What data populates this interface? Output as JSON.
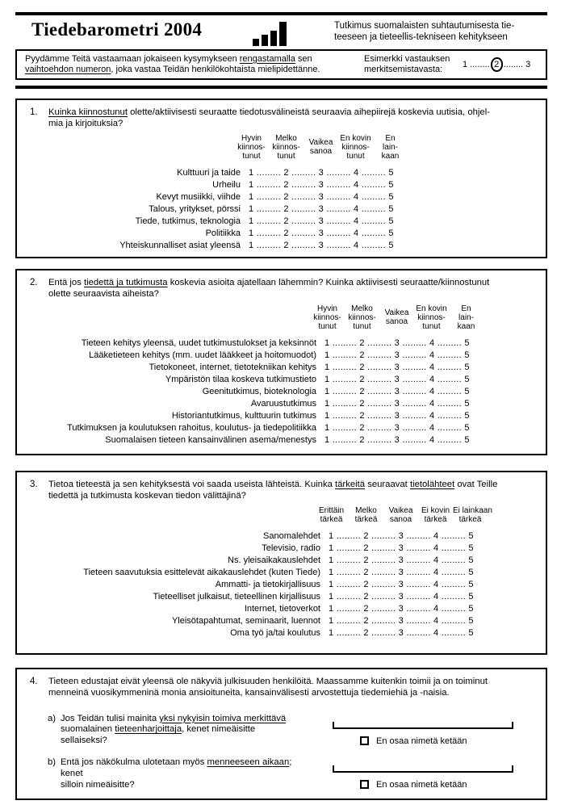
{
  "colors": {
    "ink": "#000000",
    "paper": "#ffffff"
  },
  "header": {
    "title": "Tiedebarometri 2004",
    "subtitle_line1": "Tutkimus suomalaisten suhtautumisesta tie-",
    "subtitle_line2": "teeseen ja tieteellis-tekniseen kehitykseen"
  },
  "instructions": {
    "seg_plain1": "Pyydämme Teitä vastaamaan jokaiseen kysymykseen ",
    "seg_underline1": "rengastamalla",
    "seg_plain2": " sen",
    "seg_underline2": "vaihtoehdon numeron",
    "seg_plain3": ", joka vastaa Teidän henkilökohtaista mielipidettänne.",
    "example_label_line1": "Esimerkki vastauksen",
    "example_label_line2": "merkitsemistavasta:",
    "example": {
      "n1": "1",
      "dots1": " ........",
      "n2": "2",
      "dots2": "........ ",
      "n3": "3"
    }
  },
  "rating_scale_line": "1 ......... 2 ......... 3 ......... 4 ......... 5",
  "q1": {
    "number": "1.",
    "text_u": "Kuinka kiinnostunut",
    "text_after": " olette/aktiivisesti seuraatte tiedotusvälineistä seuraavia aihepiirejä koskevia uutisia, ohjel-",
    "text_line2": "mia ja kirjoituksia?",
    "headers": [
      "Hyvin\nkiinnos-\ntunut",
      "Melko\nkiinnos-\ntunut",
      "Vaikea\nsanoa",
      "En kovin\nkiinnos-\ntunut",
      "En\nlain-\nkaan"
    ],
    "rows": [
      "Kulttuuri ja taide",
      "Urheilu",
      "Kevyt musiikki, viihde",
      "Talous, yritykset, pörssi",
      "Tiede, tutkimus, teknologia",
      "Politiikka",
      "Yhteiskunnalliset asiat yleensä"
    ]
  },
  "q2": {
    "number": "2.",
    "text_pre": "Entä jos ",
    "text_u": "tiedettä ja tutkimusta",
    "text_after": " koskevia asioita ajatellaan lähemmin? Kuinka aktiivisesti seuraatte/kiinnostunut",
    "text_line2": "olette seuraavista aiheista?",
    "headers": [
      "Hyvin\nkiinnos-\ntunut",
      "Melko\nkiinnos-\ntunut",
      "Vaikea\nsanoa",
      "En kovin\nkiinnos-\ntunut",
      "En\nlain-\nkaan"
    ],
    "rows": [
      "Tieteen kehitys yleensä, uudet tutkimustulokset ja keksinnöt",
      "Lääketieteen kehitys (mm. uudet lääkkeet ja hoitomuodot)",
      "Tietokoneet, internet, tietotekniikan kehitys",
      "Ympäristön tilaa koskeva tutkimustieto",
      "Geenitutkimus, bioteknologia",
      "Avaruustutkimus",
      "Historiantutkimus, kulttuurin tutkimus",
      "Tutkimuksen ja koulutuksen rahoitus, koulutus- ja tiedepolitiikka",
      "Suomalaisen tieteen kansainvälinen asema/menestys"
    ]
  },
  "q3": {
    "number": "3.",
    "text_pre": "Tietoa tieteestä ja sen kehityksestä voi saada useista lähteistä. Kuinka ",
    "text_u1": "tärkeitä",
    "text_mid": " seuraavat ",
    "text_u2": "tietolähteet",
    "text_after": " ovat Teille",
    "text_line2": "tiedettä ja tutkimusta koskevan tiedon välittäjinä?",
    "headers": [
      "Erittäin\ntärkeä",
      "Melko\ntärkeä",
      "Vaikea\nsanoa",
      "Ei kovin\ntärkeä",
      "Ei lainkaan\ntärkeä"
    ],
    "rows": [
      "Sanomalehdet",
      "Televisio, radio",
      "Ns. yleisaikakauslehdet",
      "Tieteen saavutuksia esittelevät aikakauslehdet (kuten Tiede)",
      "Ammatti- ja tietokirjallisuus",
      "Tieteelliset julkaisut, tieteellinen kirjallisuus",
      "Internet, tietoverkot",
      "Yleisötapahtumat, seminaarit, luennot",
      "Oma työ ja/tai koulutus"
    ]
  },
  "q4": {
    "number": "4.",
    "text_line1": "Tieteen edustajat eivät yleensä ole näkyviä julkisuuden henkilöitä. Maassamme kuitenkin toimii ja on toiminut",
    "text_line2": "menneinä vuosikymmeninä monia ansioituneita, kansainvälisesti arvostettuja tiedemiehiä ja -naisia.",
    "a": {
      "label": "a)",
      "text_pre": "Jos Teidän tulisi mainita ",
      "text_u1": "yksi nykyisin toimiva merkittävä",
      "text_line2_pre": "suomalainen ",
      "text_u2": "tieteenharjoittaja",
      "text_after": ", kenet nimeäisitte sellaiseksi?",
      "checkbox_label": "En osaa nimetä ketään"
    },
    "b": {
      "label": "b)",
      "text_pre": "Entä jos näkökulma ulotetaan myös ",
      "text_u1": "menneeseen aikaan",
      "text_after": "; kenet",
      "text_line2": "silloin nimeäisitte?",
      "checkbox_label": "En osaa nimetä ketään"
    }
  }
}
